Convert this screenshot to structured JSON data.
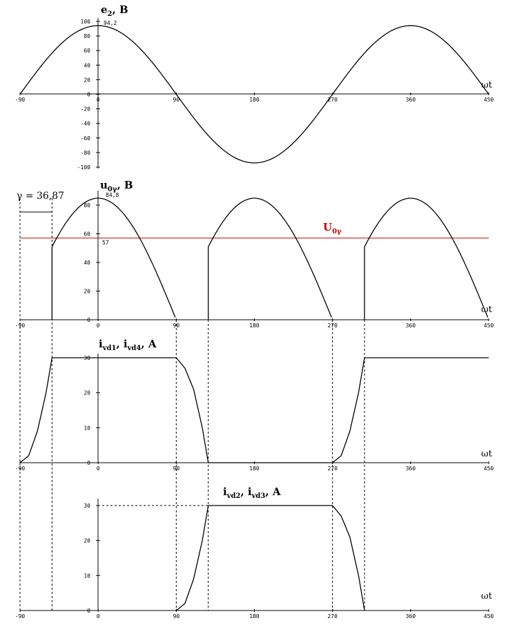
{
  "colors": {
    "u0_line": "#cc0000",
    "curve": "#000000"
  },
  "gamma_annotation": "γ = 36,87",
  "omega_t": "ωt",
  "x_ticks": [
    "-90",
    "0",
    "90",
    "180",
    "270",
    "360",
    "450"
  ],
  "chart_data": [
    {
      "type": "line",
      "title_main": "e",
      "title_sub": "2",
      "title_tail": ", B",
      "xlim": [
        -90,
        450
      ],
      "ylim": [
        -100,
        100
      ],
      "y_ticks": [
        "100",
        "80",
        "60",
        "40",
        "20",
        "0",
        "-20",
        "-40",
        "-60",
        "-80",
        "-100"
      ],
      "annotations": [
        {
          "text": "94,2",
          "x": 0,
          "y": 94.2
        }
      ],
      "series": [
        {
          "formula": "94.2*cos(wt)",
          "x_range": [
            -90,
            450
          ]
        }
      ]
    },
    {
      "type": "line",
      "title_main": "u",
      "title_sub": "0γ",
      "title_tail": ", B",
      "xlim": [
        -90,
        450
      ],
      "ylim": [
        0,
        84.8
      ],
      "y_ticks": [
        "80",
        "60",
        "40",
        "20",
        "0"
      ],
      "annotations": [
        {
          "text": "84,8",
          "x": 0,
          "y": 84.8
        },
        {
          "text": "57",
          "x": 0,
          "y": 57
        }
      ],
      "u0_label_main": "U",
      "u0_label_sub": "0γ",
      "u0_value": 57,
      "gamma": 36.87,
      "series": [
        {
          "formula": "84.8*|cos(wt)| on [-53.13, 90], [126.87, 270], [306.87, 450]; vertical jumps at -53.13, 126.87, 306.87"
        }
      ]
    },
    {
      "type": "line",
      "title_main": "i",
      "title_sub1": "vd1",
      "title_mid": ", i",
      "title_sub2": "vd4",
      "title_tail": ", A",
      "xlim": [
        -90,
        450
      ],
      "ylim": [
        0,
        30
      ],
      "y_ticks": [
        "30",
        "20",
        "10",
        "0"
      ],
      "series": [
        {
          "points": [
            [
              -90,
              0
            ],
            [
              -80,
              2
            ],
            [
              -70,
              9
            ],
            [
              -60,
              20
            ],
            [
              -53.13,
              30
            ],
            [
              90,
              30
            ],
            [
              100,
              27
            ],
            [
              110,
              21
            ],
            [
              120,
              10
            ],
            [
              126.87,
              0
            ],
            [
              270,
              0
            ],
            [
              280,
              2
            ],
            [
              290,
              9
            ],
            [
              300,
              20
            ],
            [
              306.87,
              30
            ],
            [
              450,
              30
            ]
          ]
        }
      ]
    },
    {
      "type": "line",
      "title_main": "i",
      "title_sub1": "vd2",
      "title_mid": ", i",
      "title_sub2": "vd3",
      "title_tail": ", A",
      "xlim": [
        -90,
        450
      ],
      "ylim": [
        0,
        30
      ],
      "y_ticks": [
        "30",
        "20",
        "10",
        "0"
      ],
      "series": [
        {
          "points": [
            [
              90,
              0
            ],
            [
              100,
              2
            ],
            [
              110,
              9
            ],
            [
              120,
              20
            ],
            [
              126.87,
              30
            ],
            [
              270,
              30
            ],
            [
              280,
              27
            ],
            [
              290,
              21
            ],
            [
              300,
              10
            ],
            [
              306.87,
              0
            ]
          ]
        }
      ]
    }
  ]
}
